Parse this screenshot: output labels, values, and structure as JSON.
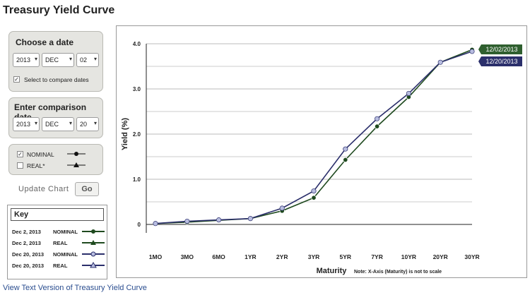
{
  "page_title": "Treasury Yield Curve",
  "choose_date": {
    "title": "Choose a date",
    "year": "2013",
    "month": "DEC",
    "day": "02",
    "compare_checked": true,
    "compare_label": "Select to compare dates"
  },
  "comparison_date": {
    "title": "Enter comparison date",
    "year": "2013",
    "month": "DEC",
    "day": "20"
  },
  "series_toggle": {
    "nominal": {
      "label": "NOMINAL",
      "checked": true
    },
    "real": {
      "label": "REAL*",
      "checked": false
    }
  },
  "update": {
    "label": "Update Chart",
    "button": "Go"
  },
  "key": {
    "title": "Key",
    "rows": [
      {
        "date": "Dec 2, 2013",
        "type": "NOMINAL"
      },
      {
        "date": "Dec 2, 2013",
        "type": "REAL"
      },
      {
        "date": "Dec 20, 2013",
        "type": "NOMINAL"
      },
      {
        "date": "Dec 20, 2013",
        "type": "REAL"
      }
    ]
  },
  "colors": {
    "dec02": "#1f4a1f",
    "dec20": "#2b2f6b",
    "dec20_marker": "#b8bde0"
  },
  "chart_data": {
    "type": "line",
    "categories": [
      "1MO",
      "3MO",
      "6MO",
      "1YR",
      "2YR",
      "3YR",
      "5YR",
      "7YR",
      "10YR",
      "20YR",
      "30YR"
    ],
    "series": [
      {
        "name": "12/02/2013",
        "values": [
          0.02,
          0.05,
          0.09,
          0.13,
          0.3,
          0.59,
          1.43,
          2.17,
          2.82,
          3.59,
          3.87
        ]
      },
      {
        "name": "12/20/2013",
        "values": [
          0.02,
          0.07,
          0.1,
          0.13,
          0.36,
          0.74,
          1.67,
          2.34,
          2.9,
          3.59,
          3.83
        ]
      }
    ],
    "yticks": [
      "0",
      "1.0",
      "2.0",
      "3.0",
      "4.0"
    ],
    "ylim": [
      0,
      4
    ],
    "xlabel": "Maturity",
    "ylabel": "Yield (%)",
    "note": "Note: X-Axis (Maturity) is not to scale",
    "grid": true
  },
  "view_text_link": "View Text Version of Treasury Yield Curve"
}
